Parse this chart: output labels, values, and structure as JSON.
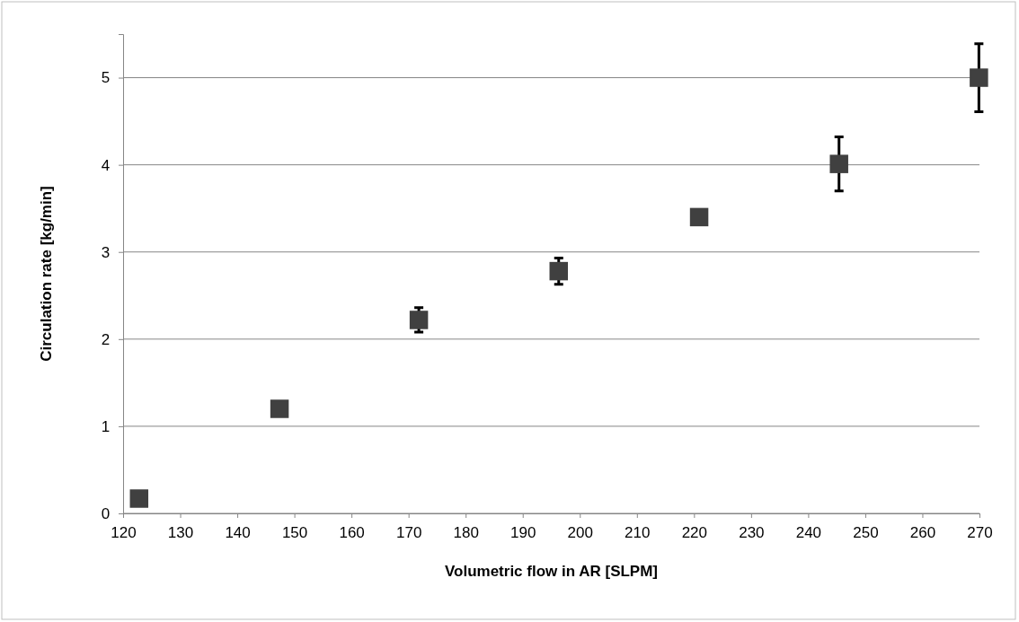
{
  "chart_data": {
    "type": "scatter",
    "xlabel": "Volumetric flow in AR [SLPM]",
    "ylabel": "Circulation rate [kg/min]",
    "x": [
      122.8,
      147.4,
      171.8,
      196.3,
      220.9,
      245.4,
      269.9
    ],
    "values": [
      0.17,
      1.2,
      2.22,
      2.78,
      3.4,
      4.01,
      5.0
    ],
    "errors": [
      null,
      null,
      0.14,
      0.15,
      null,
      0.31,
      0.39
    ],
    "color": "#404040",
    "marker": "square",
    "grid": "y",
    "xlim": [
      120,
      270
    ],
    "xticks": [
      120,
      130,
      140,
      150,
      160,
      170,
      180,
      190,
      200,
      210,
      220,
      230,
      240,
      250,
      260,
      270
    ],
    "ylim": [
      0,
      5.5
    ],
    "yticks": [
      0,
      1,
      2,
      3,
      4,
      5
    ]
  }
}
